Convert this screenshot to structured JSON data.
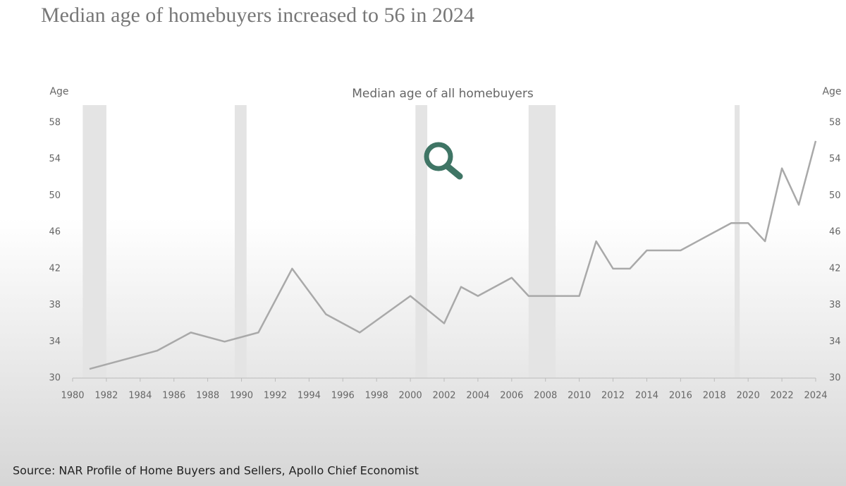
{
  "chart_data": {
    "type": "line",
    "title": "Median age of homebuyers increased to 56 in 2024",
    "subtitle": "Median age of all homebuyers",
    "y_label": "Age",
    "y2_label": "Age",
    "source": "Source: NAR Profile of Home Buyers and Sellers, Apollo Chief Economist",
    "x": [
      1981,
      1985,
      1987,
      1989,
      1991,
      1993,
      1995,
      1997,
      2000,
      2002,
      2003,
      2004,
      2006,
      2007,
      2008,
      2009,
      2010,
      2011,
      2012,
      2013,
      2014,
      2015,
      2016,
      2017,
      2018,
      2019,
      2020,
      2021,
      2022,
      2023,
      2024
    ],
    "series": [
      {
        "name": "Median age of all homebuyers",
        "color": "#a9a9a9",
        "values": [
          31,
          33,
          35,
          34,
          35,
          42,
          37,
          35,
          39,
          36,
          40,
          39,
          41,
          39,
          39,
          39,
          39,
          45,
          42,
          42,
          44,
          44,
          44,
          45,
          46,
          47,
          47,
          45,
          53,
          49,
          56
        ]
      }
    ],
    "shaded_periods": [
      [
        1980.6,
        1982
      ],
      [
        1989.6,
        1990.3
      ],
      [
        2000.3,
        2001
      ],
      [
        2007,
        2008.6
      ],
      [
        2019.2,
        2019.5
      ]
    ],
    "shade_color": "#e4e4e4",
    "xlim": [
      1980,
      2024
    ],
    "xticks": [
      1980,
      1982,
      1984,
      1986,
      1988,
      1990,
      1992,
      1994,
      1996,
      1998,
      2000,
      2002,
      2004,
      2006,
      2008,
      2010,
      2012,
      2014,
      2016,
      2018,
      2020,
      2022,
      2024
    ],
    "ylim": [
      30,
      58
    ],
    "yticks": [
      30,
      34,
      38,
      42,
      46,
      50,
      54,
      58
    ],
    "y2lim": [
      30,
      58
    ],
    "y2ticks": [
      30,
      34,
      38,
      42,
      46,
      50,
      54,
      58
    ]
  }
}
